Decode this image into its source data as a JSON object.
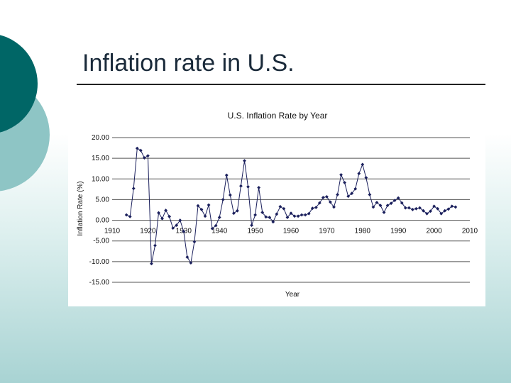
{
  "slide": {
    "title": "Inflation rate in U.S.",
    "colors": {
      "deco_dark": "#006666",
      "deco_light": "#8ec5c5",
      "bg_bottom": "#a8d3d3"
    }
  },
  "chart_data": {
    "type": "line",
    "title": "U.S. Inflation Rate by Year",
    "xlabel": "Year",
    "ylabel": "Inflation Rate (%)",
    "xlim": [
      1910,
      2010
    ],
    "ylim": [
      -15,
      20
    ],
    "xticks": [
      "1910",
      "1920",
      "1930",
      "1940",
      "1950",
      "1960",
      "1970",
      "1980",
      "1990",
      "2000",
      "2010"
    ],
    "yticks": [
      "20.00",
      "15.00",
      "10.00",
      "5.00",
      "0.00",
      "-5.00",
      "-10.00",
      "-15.00"
    ],
    "ytick_values": [
      20,
      15,
      10,
      5,
      0,
      -5,
      -10,
      -15
    ],
    "grid": true,
    "legend": "none",
    "series_color": "#1a1f5c",
    "series": [
      {
        "x": [
          1914,
          1915,
          1916,
          1917,
          1918,
          1919,
          1920,
          1921,
          1922,
          1923,
          1924,
          1925,
          1926,
          1927,
          1928,
          1929,
          1930,
          1931,
          1932,
          1933,
          1934,
          1935,
          1936,
          1937,
          1938,
          1939,
          1940,
          1941,
          1942,
          1943,
          1944,
          1945,
          1946,
          1947,
          1948,
          1949,
          1950,
          1951,
          1952,
          1953,
          1954,
          1955,
          1956,
          1957,
          1958,
          1959,
          1960,
          1961,
          1962,
          1963,
          1964,
          1965,
          1966,
          1967,
          1968,
          1969,
          1970,
          1971,
          1972,
          1973,
          1974,
          1975,
          1976,
          1977,
          1978,
          1979,
          1980,
          1981,
          1982,
          1983,
          1984,
          1985,
          1986,
          1987,
          1988,
          1989,
          1990,
          1991,
          1992,
          1993,
          1994,
          1995,
          1996,
          1997,
          1998,
          1999,
          2000,
          2001,
          2002,
          2003,
          2004,
          2005,
          2006
        ],
        "y": [
          1.3,
          0.9,
          7.7,
          17.4,
          16.9,
          15.1,
          15.6,
          -10.5,
          -6.1,
          1.8,
          0.4,
          2.4,
          0.9,
          -1.9,
          -1.2,
          0.0,
          -2.7,
          -8.9,
          -10.3,
          -5.2,
          3.5,
          2.6,
          1.0,
          3.7,
          -2.0,
          -1.3,
          0.7,
          5.0,
          10.9,
          6.1,
          1.7,
          2.3,
          8.3,
          14.4,
          8.1,
          -1.2,
          1.3,
          7.9,
          1.9,
          0.8,
          0.7,
          -0.4,
          1.5,
          3.3,
          2.8,
          0.7,
          1.7,
          1.0,
          1.0,
          1.3,
          1.3,
          1.6,
          2.9,
          3.1,
          4.2,
          5.5,
          5.7,
          4.4,
          3.2,
          6.2,
          11.0,
          9.1,
          5.8,
          6.5,
          7.6,
          11.3,
          13.5,
          10.3,
          6.2,
          3.2,
          4.3,
          3.6,
          1.9,
          3.6,
          4.1,
          4.8,
          5.4,
          4.2,
          3.0,
          3.0,
          2.6,
          2.8,
          3.0,
          2.3,
          1.6,
          2.2,
          3.4,
          2.8,
          1.6,
          2.3,
          2.7,
          3.4,
          3.2
        ]
      }
    ]
  }
}
